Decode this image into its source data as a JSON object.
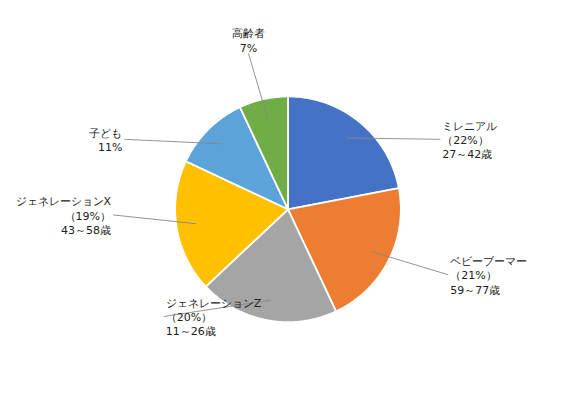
{
  "chart_data": {
    "type": "pie",
    "labels": [
      [
        "ミレニアル",
        "（22%）",
        "27～42歳"
      ],
      [
        "ベビーブーマー",
        "（21%）",
        "59～77歳"
      ],
      [
        "ジェネレーションZ",
        "（20%）",
        "11～26歳"
      ],
      [
        "ジェネレーションX",
        "（19%）",
        "43～58歳"
      ],
      [
        "子ども",
        "11%"
      ],
      [
        "高齢者",
        "7%"
      ]
    ],
    "values": [
      22,
      21,
      20,
      19,
      11,
      7
    ],
    "colors": [
      "#4472C4",
      "#ED7D31",
      "#A5A5A5",
      "#FFC000",
      "#5BA3D9",
      "#70AD47"
    ],
    "data_labels": true,
    "tick_labels": false
  }
}
